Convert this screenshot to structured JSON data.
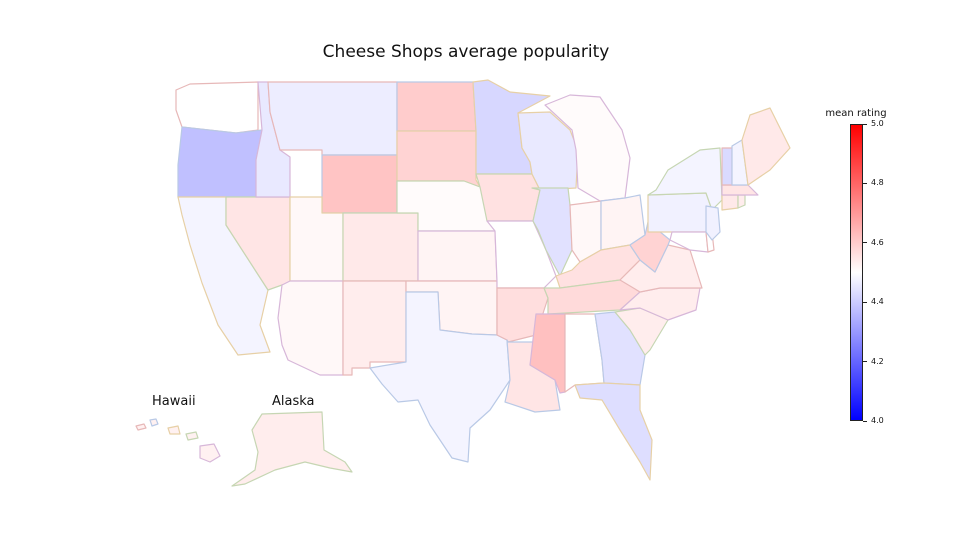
{
  "title": "Cheese Shops average popularity",
  "colorbar": {
    "label": "mean rating",
    "min": 4.0,
    "max": 5.0,
    "ticks": [
      "4.0",
      "4.2",
      "4.4",
      "4.6",
      "4.8",
      "5.0"
    ],
    "colors": {
      "low": "#0000ff",
      "mid": "#ffffff",
      "high": "#ff0000"
    }
  },
  "insets": {
    "hawaii": "Hawaii",
    "alaska": "Alaska"
  },
  "states": [
    {
      "name": "Washington",
      "rating": 4.5
    },
    {
      "name": "Oregon",
      "rating": 4.33
    },
    {
      "name": "California",
      "rating": 4.47
    },
    {
      "name": "Nevada",
      "rating": 4.57
    },
    {
      "name": "Idaho",
      "rating": 4.44
    },
    {
      "name": "Montana",
      "rating": 4.45
    },
    {
      "name": "Wyoming",
      "rating": 4.66
    },
    {
      "name": "Utah",
      "rating": 4.52
    },
    {
      "name": "Colorado",
      "rating": 4.56
    },
    {
      "name": "Arizona",
      "rating": 4.52
    },
    {
      "name": "New Mexico",
      "rating": 4.55
    },
    {
      "name": "North Dakota",
      "rating": 4.64
    },
    {
      "name": "South Dakota",
      "rating": 4.62
    },
    {
      "name": "Nebraska",
      "rating": 4.51
    },
    {
      "name": "Kansas",
      "rating": 4.53
    },
    {
      "name": "Oklahoma",
      "rating": 4.53
    },
    {
      "name": "Texas",
      "rating": 4.47
    },
    {
      "name": "Minnesota",
      "rating": 4.39
    },
    {
      "name": "Iowa",
      "rating": 4.58
    },
    {
      "name": "Missouri",
      "rating": 4.5
    },
    {
      "name": "Arkansas",
      "rating": 4.59
    },
    {
      "name": "Louisiana",
      "rating": 4.57
    },
    {
      "name": "Wisconsin",
      "rating": 4.44
    },
    {
      "name": "Illinois",
      "rating": 4.42
    },
    {
      "name": "Michigan",
      "rating": 4.51
    },
    {
      "name": "Indiana",
      "rating": 4.52
    },
    {
      "name": "Ohio",
      "rating": 4.53
    },
    {
      "name": "Kentucky",
      "rating": 4.58
    },
    {
      "name": "Tennessee",
      "rating": 4.6
    },
    {
      "name": "Mississippi",
      "rating": 4.67
    },
    {
      "name": "Alabama",
      "rating": 4.5
    },
    {
      "name": "Georgia",
      "rating": 4.42
    },
    {
      "name": "Florida",
      "rating": 4.41
    },
    {
      "name": "South Carolina",
      "rating": 4.55
    },
    {
      "name": "North Carolina",
      "rating": 4.55
    },
    {
      "name": "Virginia",
      "rating": 4.55
    },
    {
      "name": "West Virginia",
      "rating": 4.62
    },
    {
      "name": "Pennsylvania",
      "rating": 4.46
    },
    {
      "name": "New York",
      "rating": 4.47
    },
    {
      "name": "Maryland",
      "rating": 4.5
    },
    {
      "name": "Delaware",
      "rating": 4.5
    },
    {
      "name": "New Jersey",
      "rating": 4.46
    },
    {
      "name": "Connecticut",
      "rating": 4.56
    },
    {
      "name": "Rhode Island",
      "rating": 4.55
    },
    {
      "name": "Massachusetts",
      "rating": 4.57
    },
    {
      "name": "Vermont",
      "rating": 4.4
    },
    {
      "name": "New Hampshire",
      "rating": 4.47
    },
    {
      "name": "Maine",
      "rating": 4.56
    },
    {
      "name": "Alaska",
      "rating": 4.55
    },
    {
      "name": "Hawaii",
      "rating": 4.54
    }
  ]
}
